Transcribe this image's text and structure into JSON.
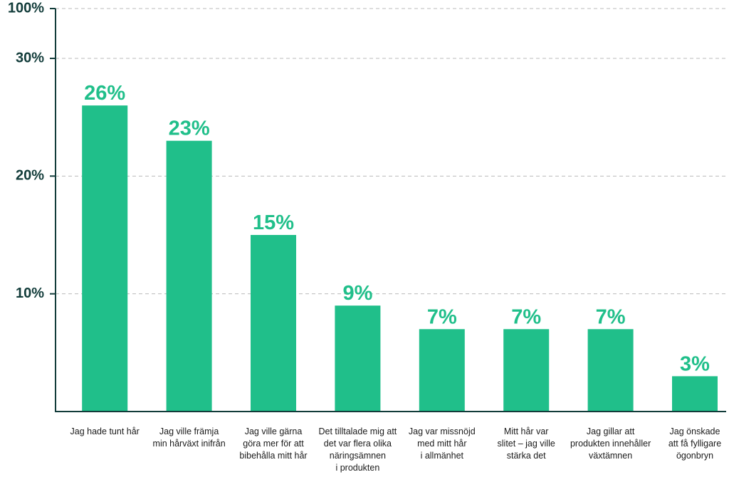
{
  "chart_data": {
    "type": "bar",
    "categories": [
      "Jag hade tunt hår",
      "Jag ville främja\nmin hårväxt inifrån",
      "Jag ville gärna\ngöra mer för att\nbibehålla mitt hår",
      "Det tilltalade mig att\ndet var flera olika\nnäringsämnen\ni produkten",
      "Jag var missnöjd\nmed mitt hår\ni allmänhet",
      "Mitt hår var\nslitet – jag ville\nstärka det",
      "Jag gillar att\nprodukten innehåller\nväxtämnen",
      "Jag önskade\natt få fylligare\nögonbryn"
    ],
    "values": [
      26,
      23,
      15,
      9,
      7,
      7,
      7,
      3
    ],
    "value_labels": [
      "26%",
      "23%",
      "15%",
      "9%",
      "7%",
      "7%",
      "7%",
      "3%"
    ],
    "color": "#20bf8a",
    "ylim": [
      0,
      100
    ],
    "axis_break": 30,
    "yticks": [
      {
        "value": 10,
        "label": "10%"
      },
      {
        "value": 20,
        "label": "20%"
      },
      {
        "value": 30,
        "label": "30%"
      },
      {
        "value": 100,
        "label": "100%"
      }
    ],
    "grid": true
  }
}
